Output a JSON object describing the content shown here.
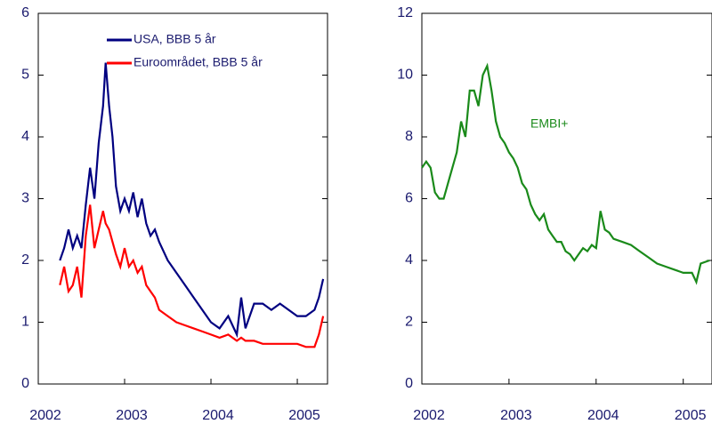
{
  "chart_data": [
    {
      "type": "line",
      "xlim": [
        2002,
        2005.35
      ],
      "xticks": [
        2002,
        2003,
        2004,
        2005
      ],
      "ylim": [
        0,
        6
      ],
      "yticks": [
        0,
        1,
        2,
        3,
        4,
        5,
        6
      ],
      "x": [
        2002.25,
        2002.3,
        2002.35,
        2002.4,
        2002.45,
        2002.5,
        2002.55,
        2002.6,
        2002.65,
        2002.7,
        2002.75,
        2002.78,
        2002.82,
        2002.86,
        2002.9,
        2002.95,
        2003.0,
        2003.05,
        2003.1,
        2003.15,
        2003.2,
        2003.25,
        2003.3,
        2003.35,
        2003.4,
        2003.5,
        2003.6,
        2003.7,
        2003.8,
        2003.9,
        2004.0,
        2004.1,
        2004.2,
        2004.3,
        2004.35,
        2004.4,
        2004.5,
        2004.6,
        2004.7,
        2004.8,
        2004.9,
        2005.0,
        2005.1,
        2005.2,
        2005.25,
        2005.3
      ],
      "series": [
        {
          "name": "USA, BBB 5 år",
          "color": "#000080",
          "values": [
            2.0,
            2.2,
            2.5,
            2.2,
            2.4,
            2.2,
            2.9,
            3.5,
            3.0,
            3.9,
            4.5,
            5.2,
            4.5,
            4.0,
            3.2,
            2.8,
            3.0,
            2.8,
            3.1,
            2.7,
            3.0,
            2.6,
            2.4,
            2.5,
            2.3,
            2.0,
            1.8,
            1.6,
            1.4,
            1.2,
            1.0,
            0.9,
            1.1,
            0.8,
            1.4,
            0.9,
            1.3,
            1.3,
            1.2,
            1.3,
            1.2,
            1.1,
            1.1,
            1.2,
            1.4,
            1.7
          ]
        },
        {
          "name": "Euroområdet,  BBB 5 år",
          "color": "#ff0000",
          "values": [
            1.6,
            1.9,
            1.5,
            1.6,
            1.9,
            1.4,
            2.4,
            2.9,
            2.2,
            2.5,
            2.8,
            2.6,
            2.5,
            2.3,
            2.1,
            1.9,
            2.2,
            1.9,
            2.0,
            1.8,
            1.9,
            1.6,
            1.5,
            1.4,
            1.2,
            1.1,
            1.0,
            0.95,
            0.9,
            0.85,
            0.8,
            0.75,
            0.8,
            0.7,
            0.75,
            0.7,
            0.7,
            0.65,
            0.65,
            0.65,
            0.65,
            0.65,
            0.6,
            0.6,
            0.8,
            1.1
          ]
        }
      ]
    },
    {
      "type": "line",
      "xlim": [
        2002,
        2005.33
      ],
      "xticks": [
        2002,
        2003,
        2004,
        2005
      ],
      "ylim": [
        0,
        12
      ],
      "yticks": [
        0,
        2,
        4,
        6,
        8,
        10,
        12
      ],
      "annotation": "EMBI+",
      "x": [
        2002.0,
        2002.05,
        2002.1,
        2002.15,
        2002.2,
        2002.25,
        2002.3,
        2002.35,
        2002.4,
        2002.45,
        2002.5,
        2002.55,
        2002.6,
        2002.65,
        2002.7,
        2002.75,
        2002.8,
        2002.85,
        2002.9,
        2002.95,
        2003.0,
        2003.05,
        2003.1,
        2003.15,
        2003.2,
        2003.25,
        2003.3,
        2003.35,
        2003.4,
        2003.45,
        2003.5,
        2003.55,
        2003.6,
        2003.65,
        2003.7,
        2003.75,
        2003.8,
        2003.85,
        2003.9,
        2003.95,
        2004.0,
        2004.05,
        2004.1,
        2004.15,
        2004.2,
        2004.3,
        2004.4,
        2004.5,
        2004.6,
        2004.7,
        2004.8,
        2004.9,
        2005.0,
        2005.1,
        2005.15,
        2005.2,
        2005.3
      ],
      "series": [
        {
          "color": "#1a8a1a",
          "values": [
            7.0,
            7.2,
            7.0,
            6.2,
            6.0,
            6.0,
            6.5,
            7.0,
            7.5,
            8.5,
            8.0,
            9.5,
            9.5,
            9.0,
            10.0,
            10.3,
            9.5,
            8.5,
            8.0,
            7.8,
            7.5,
            7.3,
            7.0,
            6.5,
            6.3,
            5.8,
            5.5,
            5.3,
            5.5,
            5.0,
            4.8,
            4.6,
            4.6,
            4.3,
            4.2,
            4.0,
            4.2,
            4.4,
            4.3,
            4.5,
            4.4,
            5.6,
            5.0,
            4.9,
            4.7,
            4.6,
            4.5,
            4.3,
            4.1,
            3.9,
            3.8,
            3.7,
            3.6,
            3.6,
            3.3,
            3.9,
            4.0
          ]
        }
      ]
    }
  ]
}
